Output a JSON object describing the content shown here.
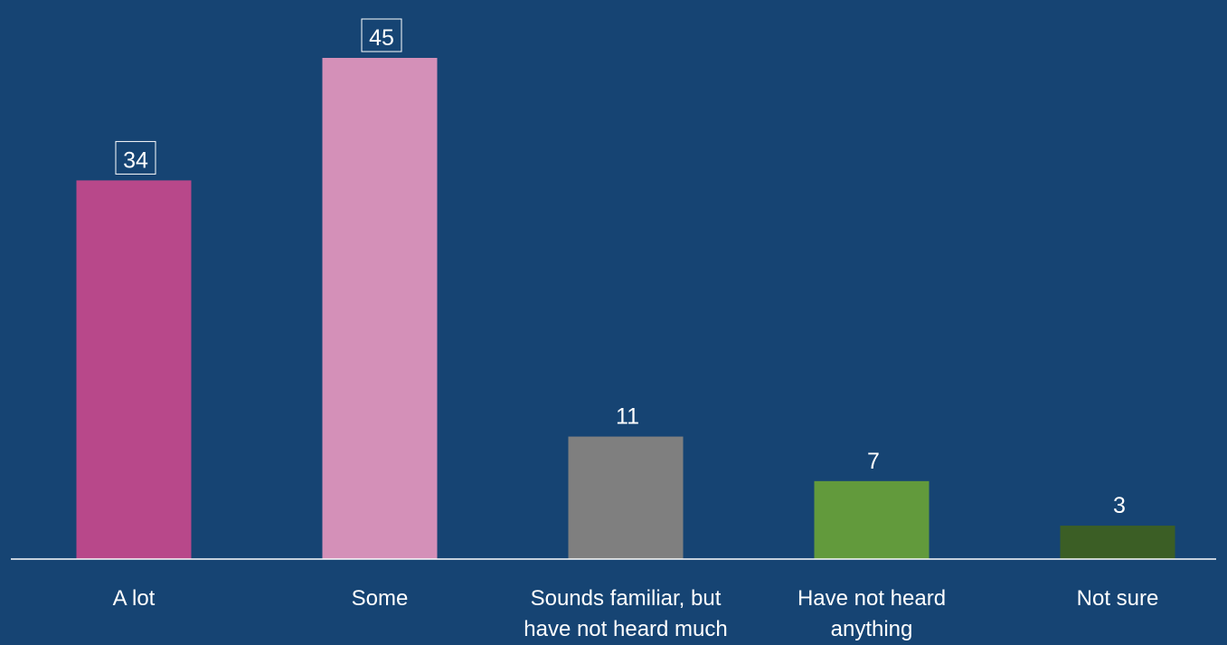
{
  "chart_data": {
    "type": "bar",
    "categories": [
      [
        "A lot"
      ],
      [
        "Some"
      ],
      [
        "Sounds familiar, but",
        "have not heard much"
      ],
      [
        "Have not heard",
        "anything"
      ],
      [
        "Not sure"
      ]
    ],
    "values": [
      34,
      45,
      11,
      7,
      3
    ],
    "value_labels": [
      "34",
      "45",
      "11",
      "7",
      "3"
    ],
    "boxed_labels": [
      true,
      true,
      false,
      false,
      false
    ],
    "colors": [
      "#b8488a",
      "#d490b8",
      "#7f7f7f",
      "#629a3c",
      "#3b5e25"
    ],
    "title": "",
    "xlabel": "",
    "ylabel": "",
    "ylim": [
      0,
      45
    ],
    "grid": false,
    "legend": "none"
  },
  "colors": {
    "background": "#164473",
    "axis": "#ffffff",
    "text": "#ffffff"
  }
}
